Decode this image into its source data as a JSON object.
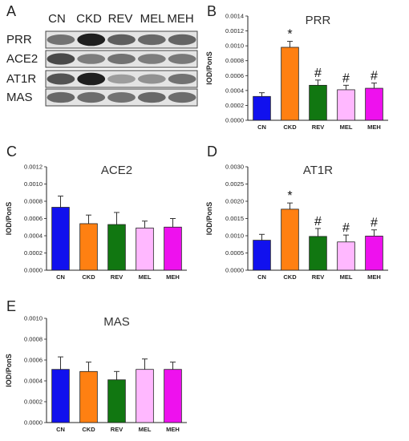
{
  "panels": {
    "a": "A",
    "b": "B",
    "c": "C",
    "d": "D",
    "e": "E"
  },
  "blot": {
    "columns": [
      "CN",
      "CKD",
      "REV",
      "MEL",
      "MEH"
    ],
    "rows": [
      "PRR",
      "ACE2",
      "AT1R",
      "MAS"
    ],
    "band_intensity": {
      "PRR": [
        0.55,
        0.95,
        0.65,
        0.6,
        0.62
      ],
      "ACE2": [
        0.75,
        0.5,
        0.55,
        0.5,
        0.52
      ],
      "AT1R": [
        0.7,
        0.95,
        0.35,
        0.4,
        0.55
      ],
      "MAS": [
        0.6,
        0.58,
        0.55,
        0.6,
        0.58
      ]
    }
  },
  "colors": {
    "CN": "#1111ee",
    "CKD": "#ff8012",
    "REV": "#117711",
    "MEL": "#ffb8ff",
    "MEH": "#ee11ee"
  },
  "chart_data": [
    {
      "id": "B",
      "type": "bar",
      "title": "PRR",
      "ylabel": "IOD/PonS",
      "categories": [
        "CN",
        "CKD",
        "REV",
        "MEL",
        "MEH"
      ],
      "values": [
        0.00032,
        0.00098,
        0.00047,
        0.00041,
        0.00043
      ],
      "errors": [
        5e-05,
        8e-05,
        7e-05,
        6e-05,
        7e-05
      ],
      "ylim": [
        0,
        0.0014
      ],
      "yticks": [
        "0.0000",
        "0.0002",
        "0.0004",
        "0.0006",
        "0.0008",
        "0.0010",
        "0.0012",
        "0.0014"
      ],
      "annotations": [
        "",
        "*",
        "#",
        "#",
        "#"
      ]
    },
    {
      "id": "C",
      "type": "bar",
      "title": "ACE2",
      "ylabel": "IOD/PonS",
      "categories": [
        "CN",
        "CKD",
        "REV",
        "MEL",
        "MEH"
      ],
      "values": [
        0.00073,
        0.00054,
        0.00053,
        0.00049,
        0.0005
      ],
      "errors": [
        0.00013,
        0.0001,
        0.00014,
        8e-05,
        0.0001
      ],
      "ylim": [
        0,
        0.0012
      ],
      "yticks": [
        "0.0000",
        "0.0002",
        "0.0004",
        "0.0006",
        "0.0008",
        "0.0010",
        "0.0012"
      ],
      "annotations": [
        "",
        "",
        "",
        "",
        ""
      ]
    },
    {
      "id": "D",
      "type": "bar",
      "title": "AT1R",
      "ylabel": "IOD/PonS",
      "categories": [
        "CN",
        "CKD",
        "REV",
        "MEL",
        "MEH"
      ],
      "values": [
        0.00087,
        0.00177,
        0.00098,
        0.00082,
        0.00099
      ],
      "errors": [
        0.00017,
        0.00018,
        0.00023,
        0.0002,
        0.00018
      ],
      "ylim": [
        0,
        0.003
      ],
      "yticks": [
        "0.0000",
        "0.0005",
        "0.0010",
        "0.0015",
        "0.0020",
        "0.0025",
        "0.0030"
      ],
      "annotations": [
        "",
        "*",
        "#",
        "#",
        "#"
      ]
    },
    {
      "id": "E",
      "type": "bar",
      "title": "MAS",
      "ylabel": "IOD/PonS",
      "categories": [
        "CN",
        "CKD",
        "REV",
        "MEL",
        "MEH"
      ],
      "values": [
        0.00051,
        0.00049,
        0.00041,
        0.00051,
        0.00051
      ],
      "errors": [
        0.00012,
        9e-05,
        8e-05,
        0.0001,
        7e-05
      ],
      "ylim": [
        0,
        0.001
      ],
      "yticks": [
        "0.0000",
        "0.0002",
        "0.0004",
        "0.0006",
        "0.0008",
        "0.0010"
      ],
      "annotations": [
        "",
        "",
        "",
        "",
        ""
      ]
    }
  ]
}
